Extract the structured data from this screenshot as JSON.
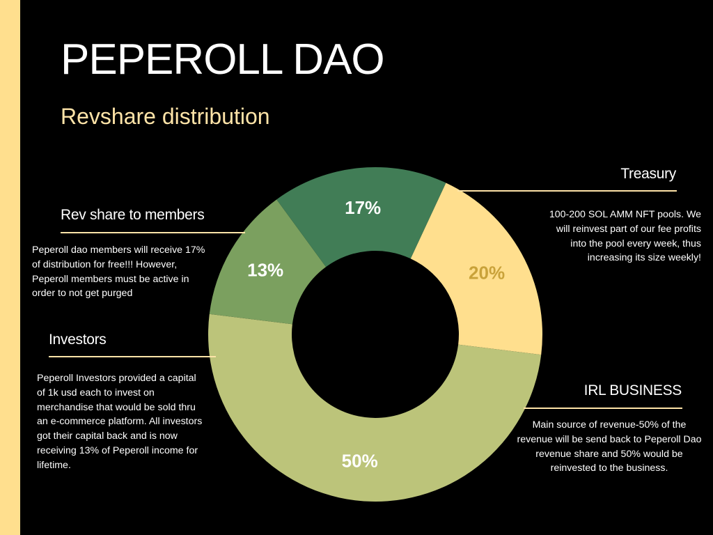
{
  "header": {
    "title": "PEPEROLL DAO",
    "subtitle": "Revshare distribution"
  },
  "colors": {
    "accent": "#FFDF8E",
    "rule": "#FFE4A8",
    "subtitle": "#FFE4A8",
    "background": "#000000"
  },
  "sections": {
    "treasury": {
      "heading": "Treasury",
      "lines": [
        "100-200 SOL AMM NFT pools. We",
        "will reinvest part of our fee profits",
        "into the pool every week, thus",
        "increasing its size weekly!"
      ]
    },
    "members": {
      "heading": "Rev share to members",
      "lines": [
        "Peperoll dao members will receive 17%",
        "of distribution for free!!! However,",
        "Peperoll members must be active in",
        "order to not get purged"
      ]
    },
    "investors": {
      "heading": "Investors",
      "lines": [
        "Peperoll Investors provided a capital",
        "of 1k usd each to invest on",
        "merchandise that would be sold thru",
        "an e-commerce platform.  All investors",
        "got their capital back and is now",
        "receiving 13% of Peperoll income for",
        "lifetime."
      ]
    },
    "irl_business": {
      "heading": "IRL BUSINESS",
      "lines": [
        "Main source of revenue-50% of the",
        "revenue will be send back to Peperoll Dao",
        "revenue share and 50% would be",
        "reinvested to the business."
      ]
    }
  },
  "chart_data": {
    "type": "pie",
    "variant": "donut",
    "title": "Revshare distribution",
    "slices": [
      {
        "label": "20%",
        "value": 20,
        "color": "#FFDF8E",
        "label_color": "#C9A23A"
      },
      {
        "label": "50%",
        "value": 50,
        "color": "#BCC47A",
        "label_color": "#FFFFFF"
      },
      {
        "label": "13%",
        "value": 13,
        "color": "#7BA05F",
        "label_color": "#FFFFFF"
      },
      {
        "label": "17%",
        "value": 17,
        "color": "#417D56",
        "label_color": "#FFFFFF"
      }
    ]
  }
}
